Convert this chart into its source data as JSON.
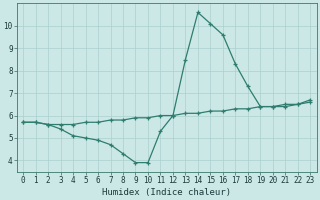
{
  "xlabel": "Humidex (Indice chaleur)",
  "background_color": "#cce8e6",
  "grid_color": "#aacfcd",
  "line_color": "#2e7d6e",
  "xlim": [
    -0.5,
    23.5
  ],
  "ylim": [
    3.5,
    11.0
  ],
  "xticks": [
    0,
    1,
    2,
    3,
    4,
    5,
    6,
    7,
    8,
    9,
    10,
    11,
    12,
    13,
    14,
    15,
    16,
    17,
    18,
    19,
    20,
    21,
    22,
    23
  ],
  "yticks": [
    4,
    5,
    6,
    7,
    8,
    9,
    10
  ],
  "series1_x": [
    0,
    1,
    2,
    3,
    4,
    5,
    6,
    7,
    8,
    9,
    10,
    11,
    12,
    13,
    14,
    15,
    16,
    17,
    18,
    19,
    20,
    21,
    22,
    23
  ],
  "series1_y": [
    5.7,
    5.7,
    5.6,
    5.4,
    5.1,
    5.0,
    4.9,
    4.7,
    4.3,
    3.9,
    3.9,
    5.3,
    6.0,
    8.5,
    10.6,
    10.1,
    9.6,
    8.3,
    7.3,
    6.4,
    6.4,
    6.4,
    6.5,
    6.7
  ],
  "series2_x": [
    0,
    1,
    2,
    3,
    4,
    5,
    6,
    7,
    8,
    9,
    10,
    11,
    12,
    13,
    14,
    15,
    16,
    17,
    18,
    19,
    20,
    21,
    22,
    23
  ],
  "series2_y": [
    5.7,
    5.7,
    5.6,
    5.6,
    5.6,
    5.7,
    5.7,
    5.8,
    5.8,
    5.9,
    5.9,
    6.0,
    6.0,
    6.1,
    6.1,
    6.2,
    6.2,
    6.3,
    6.3,
    6.4,
    6.4,
    6.5,
    6.5,
    6.6
  ],
  "tick_fontsize": 5.5,
  "label_fontsize": 6.5
}
